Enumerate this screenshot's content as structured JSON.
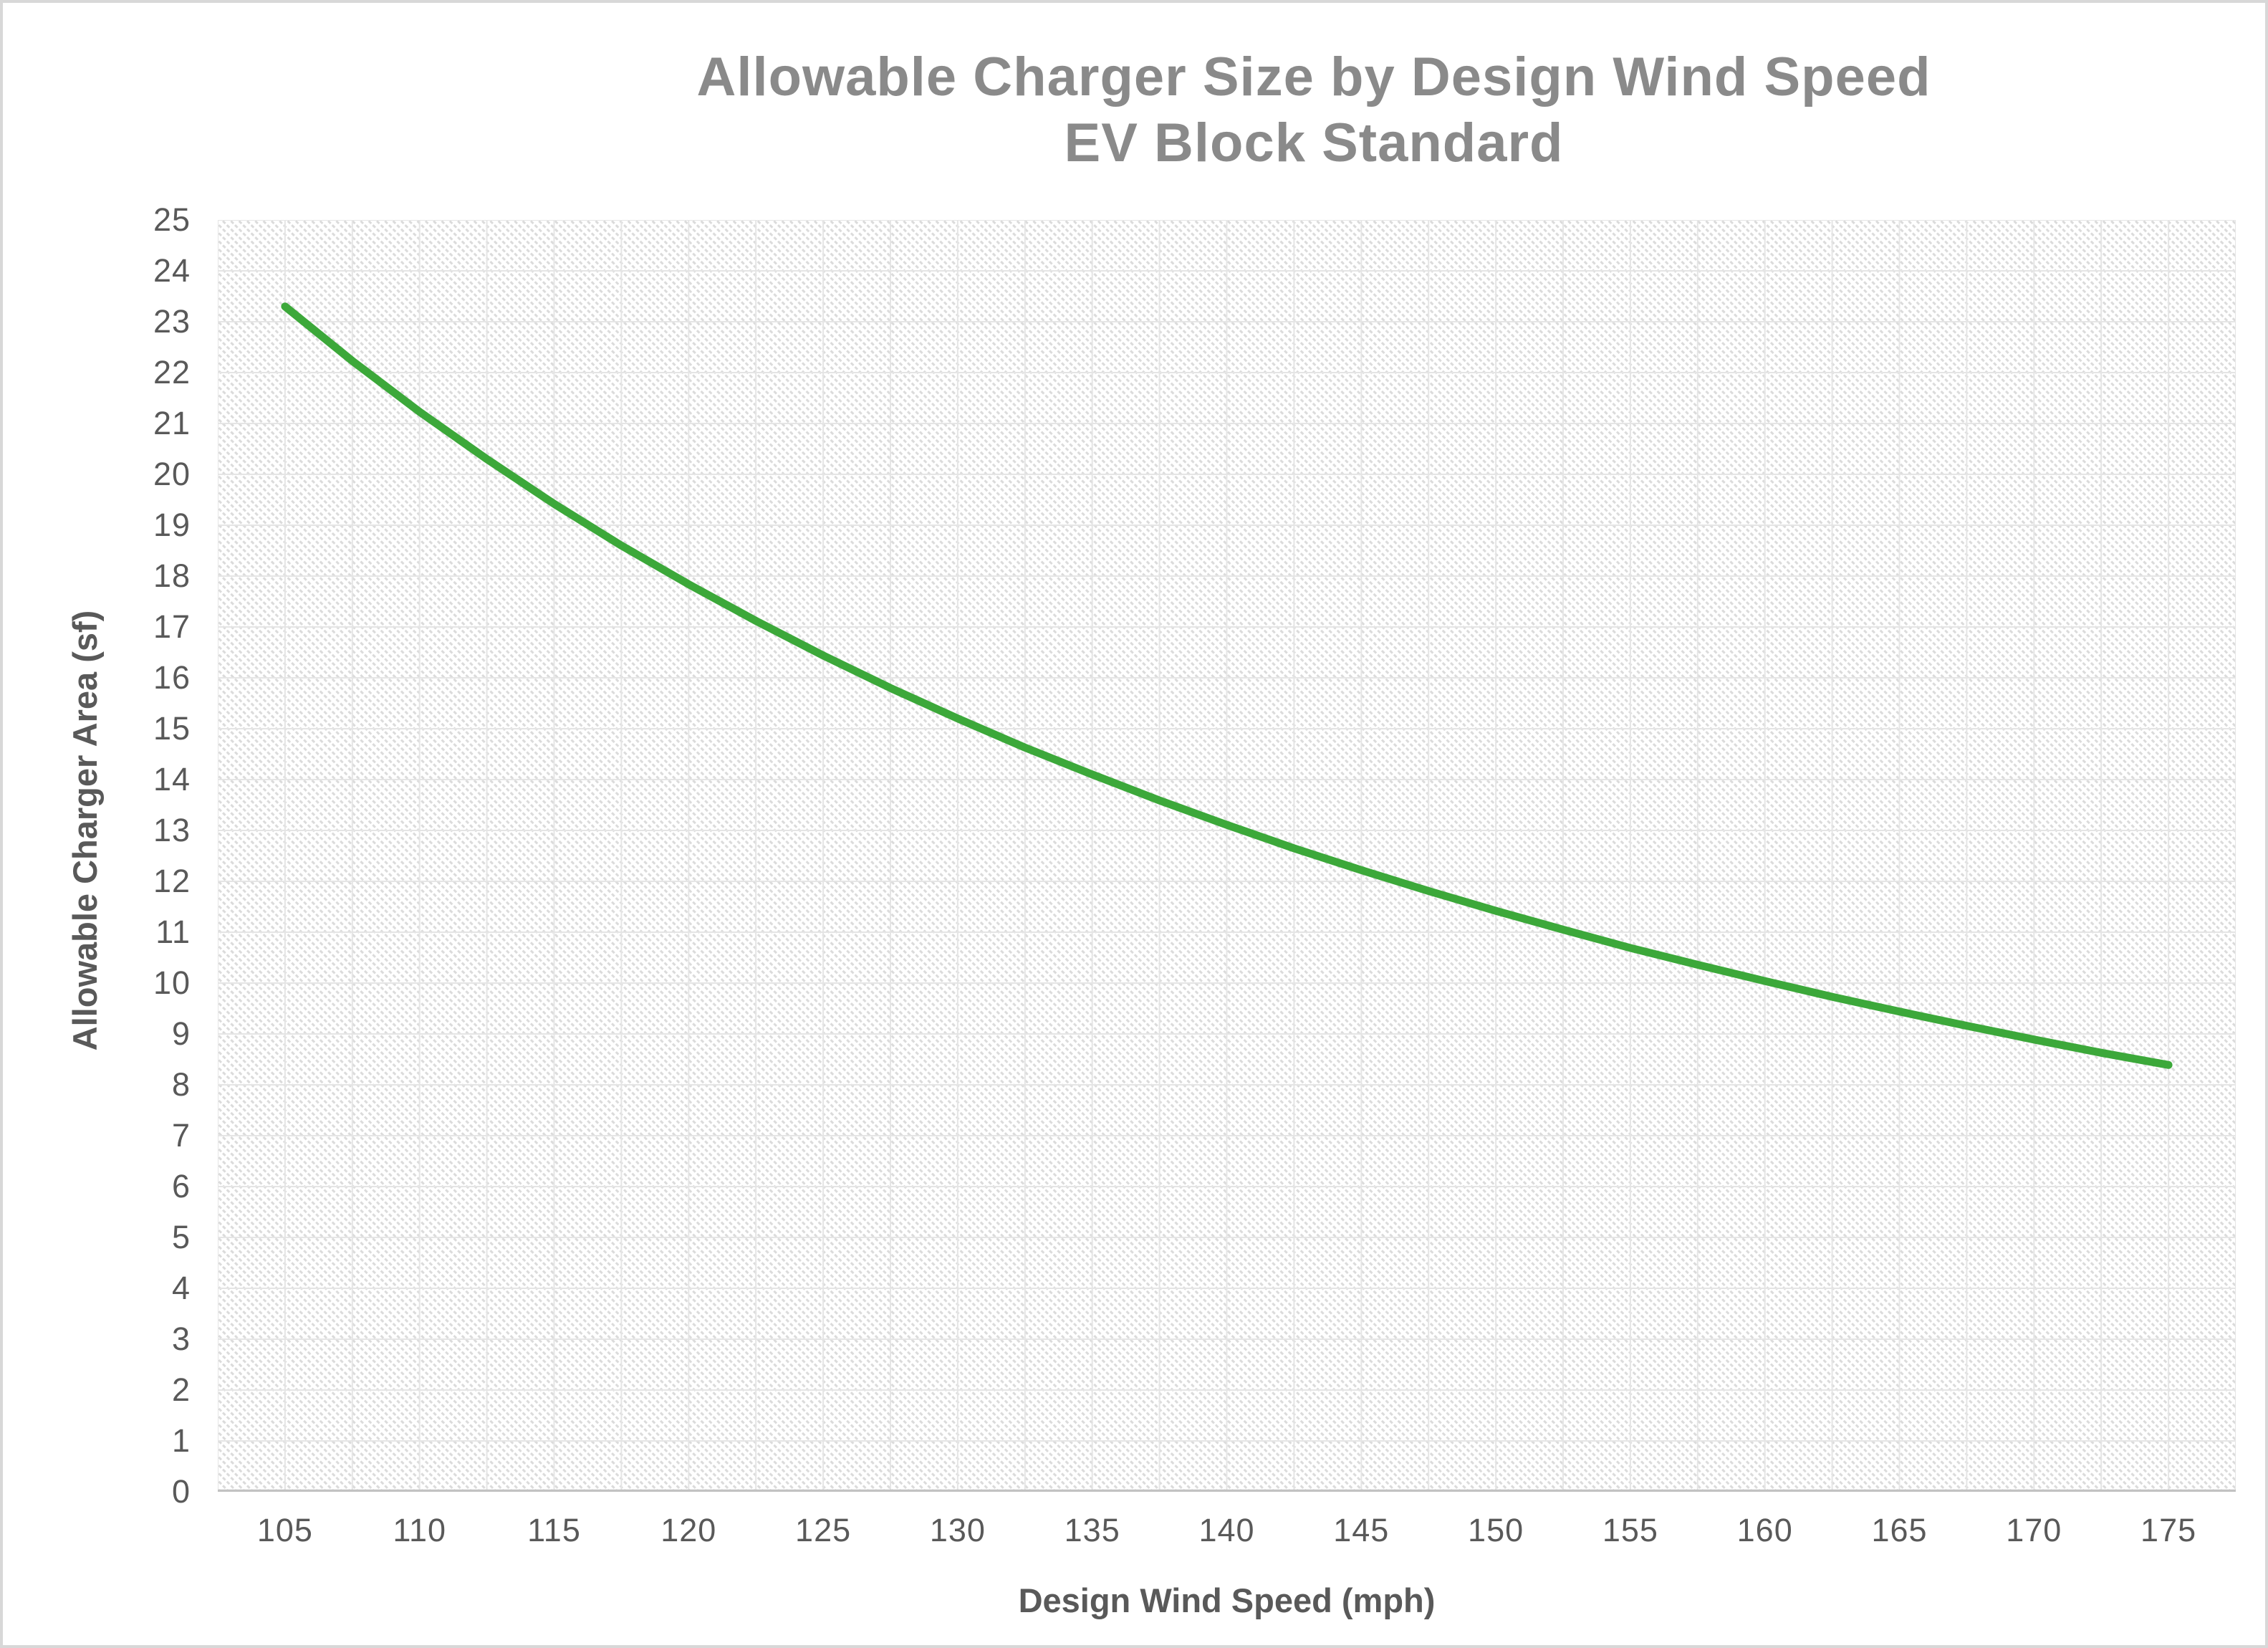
{
  "chart": {
    "title_line1": "Allowable Charger Size by Design Wind Speed",
    "title_line2": "EV Block Standard",
    "x_axis_title": "Design Wind Speed (mph)",
    "y_axis_title": "Allowable Charger Area (sf)"
  },
  "colors": {
    "line": "#3CA83A",
    "title_text": "#8A8A8A",
    "axis_text": "#595959",
    "gridline": "#E5E5E5",
    "axis_line": "#C2C2C2",
    "hatch": "#DBDBDB",
    "canvas_border": "#D8D8D8",
    "background": "#FFFFFF"
  },
  "chart_data": {
    "type": "line",
    "title": "Allowable Charger Size by Design Wind Speed — EV Block Standard",
    "xlabel": "Design Wind Speed (mph)",
    "ylabel": "Allowable Charger Area (sf)",
    "xlim": [
      102.5,
      177.5
    ],
    "ylim": [
      0,
      25
    ],
    "x_minor_step": 2.5,
    "y_step": 1,
    "grid": true,
    "legend": false,
    "series_name": "Allowable charger area",
    "x": [
      105,
      107.5,
      110,
      112.5,
      115,
      117.5,
      120,
      122.5,
      125,
      127.5,
      130,
      132.5,
      135,
      137.5,
      140,
      142.5,
      145,
      147.5,
      150,
      152.5,
      155,
      157.5,
      160,
      162.5,
      165,
      167.5,
      170,
      172.5,
      175
    ],
    "y": [
      23.3,
      22.23,
      21.23,
      20.3,
      19.42,
      18.6,
      17.84,
      17.12,
      16.44,
      15.8,
      15.2,
      14.63,
      14.1,
      13.59,
      13.11,
      12.65,
      12.22,
      11.81,
      11.42,
      11.05,
      10.69,
      10.36,
      10.04,
      9.73,
      9.44,
      9.16,
      8.89,
      8.63,
      8.39
    ],
    "x_ticks": [
      105,
      110,
      115,
      120,
      125,
      130,
      135,
      140,
      145,
      150,
      155,
      160,
      165,
      170,
      175
    ],
    "y_ticks": [
      0,
      1,
      2,
      3,
      4,
      5,
      6,
      7,
      8,
      9,
      10,
      11,
      12,
      13,
      14,
      15,
      16,
      17,
      18,
      19,
      20,
      21,
      22,
      23,
      24,
      25
    ]
  }
}
